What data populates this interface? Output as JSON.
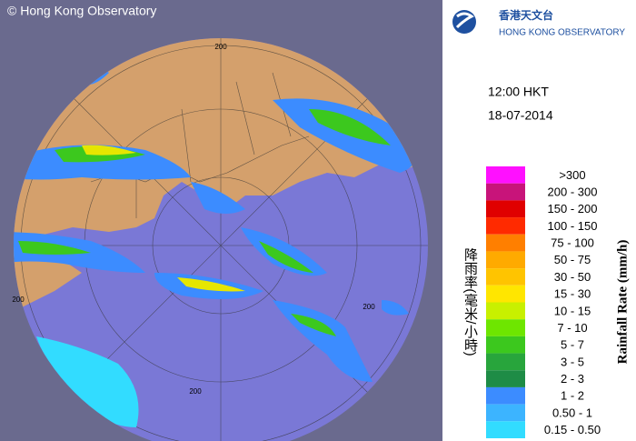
{
  "header": {
    "copyright": "© Hong Kong Observatory",
    "logo_chinese": "香港天文台",
    "logo_english": "HONG KONG OBSERVATORY",
    "time": "12:00 HKT",
    "date": "18-07-2014"
  },
  "map": {
    "range_labels": [
      "200",
      "200",
      "200",
      "200"
    ]
  },
  "legend": {
    "title_chinese": "降雨率(毫米/小時)",
    "title_english": "Rainfall Rate (mm/h)",
    "items": [
      {
        "label": ">300",
        "color": "#ff10ff"
      },
      {
        "label": "200 - 300",
        "color": "#c8147a"
      },
      {
        "label": "150 - 200",
        "color": "#e00000"
      },
      {
        "label": "100 - 150",
        "color": "#ff2a00"
      },
      {
        "label": "75 - 100",
        "color": "#ff7f00"
      },
      {
        "label": "50 - 75",
        "color": "#ffaa00"
      },
      {
        "label": "30 - 50",
        "color": "#ffc400"
      },
      {
        "label": "15 - 30",
        "color": "#ffe600"
      },
      {
        "label": "10 - 15",
        "color": "#c8f000"
      },
      {
        "label": "7 - 10",
        "color": "#6ee600"
      },
      {
        "label": "5 - 7",
        "color": "#3cc81e"
      },
      {
        "label": "3 - 5",
        "color": "#28a53c"
      },
      {
        "label": "2 - 3",
        "color": "#1e8c46"
      },
      {
        "label": "1 - 2",
        "color": "#3c8cff"
      },
      {
        "label": "0.50 - 1",
        "color": "#3cb4ff"
      },
      {
        "label": "0.15 - 0.50",
        "color": "#32dcff"
      }
    ]
  }
}
